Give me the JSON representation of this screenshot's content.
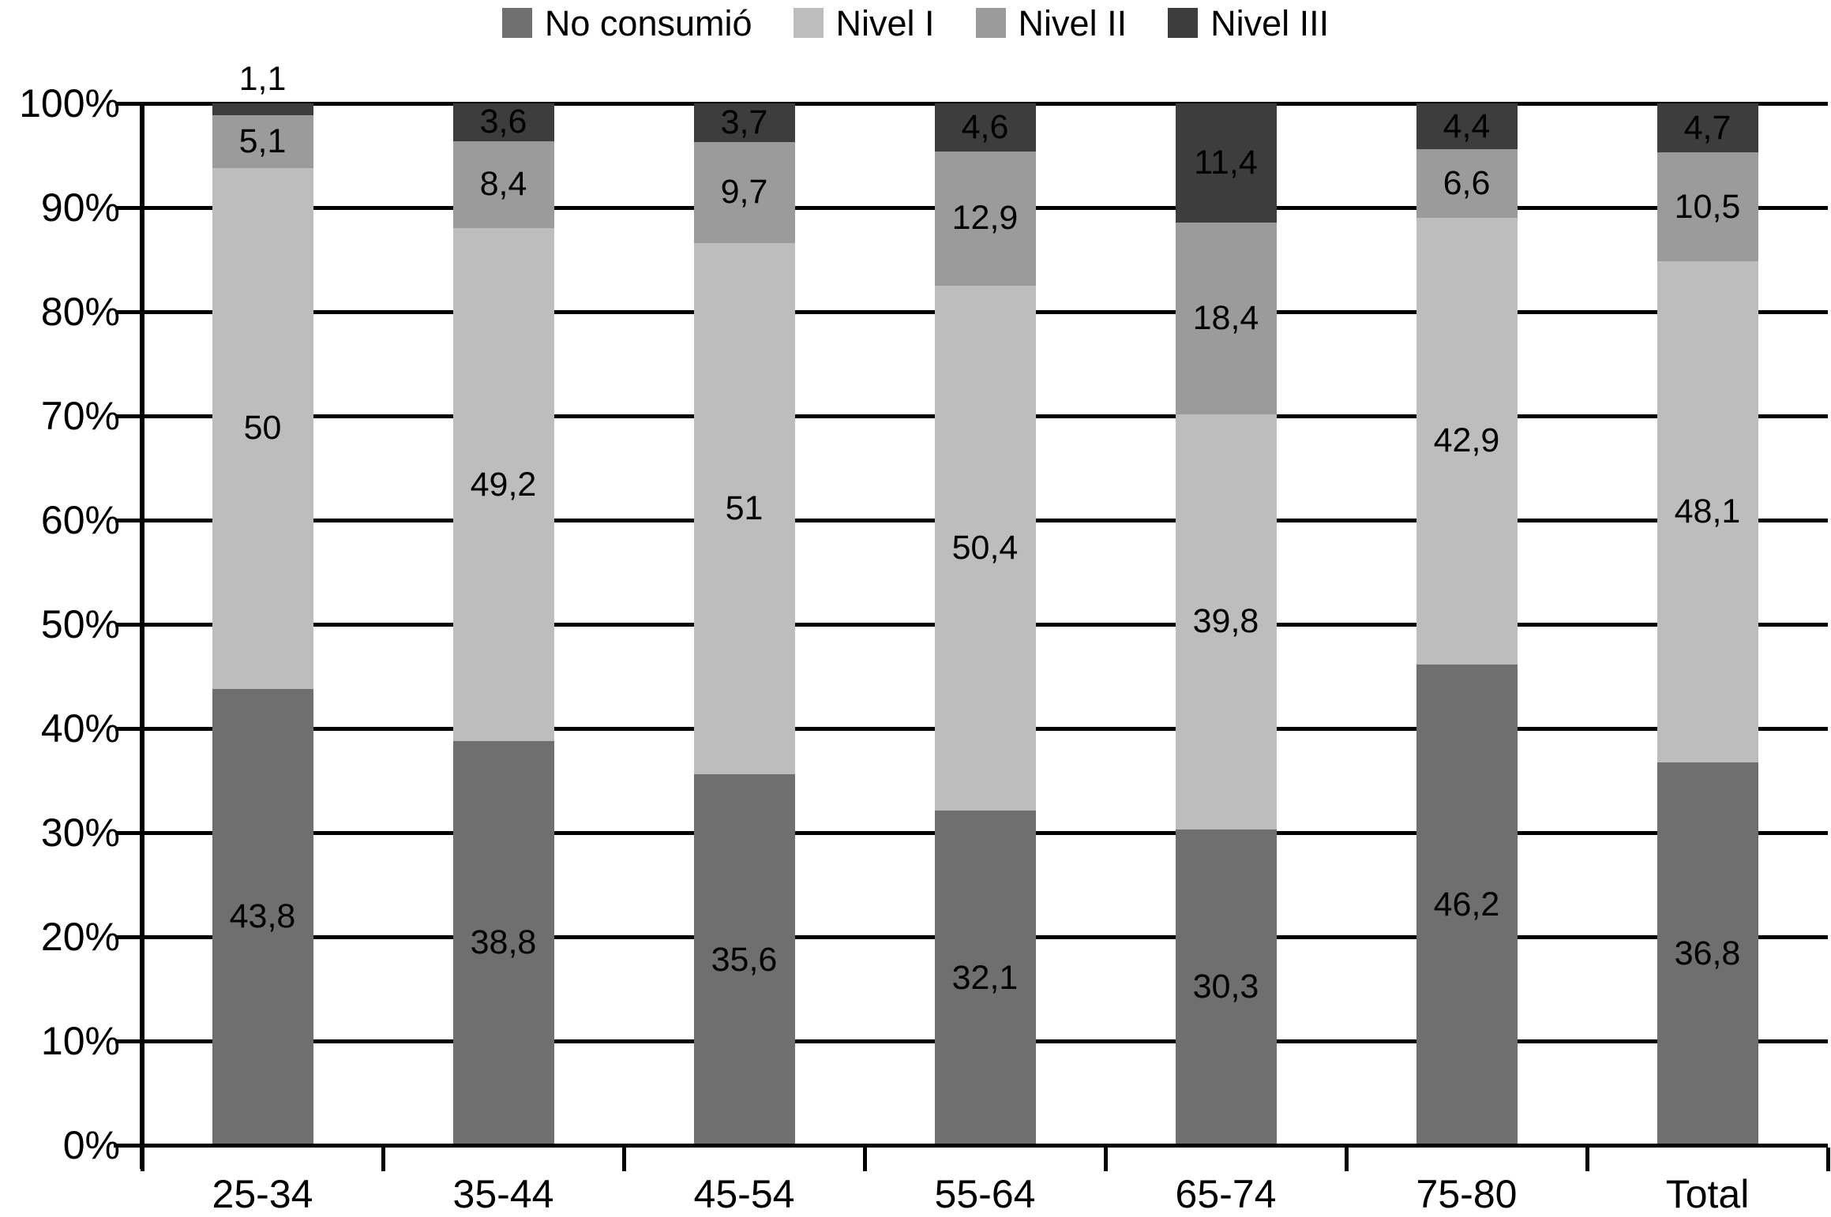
{
  "chart_data": {
    "type": "bar",
    "subtype": "stacked-100-percent",
    "title": "",
    "categories": [
      "25-34",
      "35-44",
      "45-54",
      "55-64",
      "65-74",
      "75-80",
      "Total"
    ],
    "series": [
      {
        "name": "No consumió",
        "color": "#6f6f6f",
        "values": [
          43.8,
          38.8,
          35.6,
          32.1,
          30.3,
          46.2,
          36.8
        ]
      },
      {
        "name": "Nivel I",
        "color": "#bdbdbd",
        "values": [
          50,
          49.2,
          51,
          50.4,
          39.8,
          42.9,
          48.1
        ]
      },
      {
        "name": "Nivel II",
        "color": "#9b9b9b",
        "values": [
          5.1,
          8.4,
          9.7,
          12.9,
          18.4,
          6.6,
          10.5
        ]
      },
      {
        "name": "Nivel III",
        "color": "#3d3d3d",
        "values": [
          1.1,
          3.6,
          3.7,
          4.6,
          11.4,
          4.4,
          4.7
        ]
      }
    ],
    "value_label_decimal_separator": ",",
    "xlabel": "",
    "ylabel": "",
    "ylim": [
      0,
      100
    ],
    "y_tick_labels": [
      "0%",
      "10%",
      "20%",
      "30%",
      "40%",
      "50%",
      "60%",
      "70%",
      "80%",
      "90%",
      "100%"
    ],
    "grid": true,
    "gridline_color": "#000000",
    "legend_position": "top",
    "background_color": "#ffffff",
    "text_color": "#000000"
  }
}
